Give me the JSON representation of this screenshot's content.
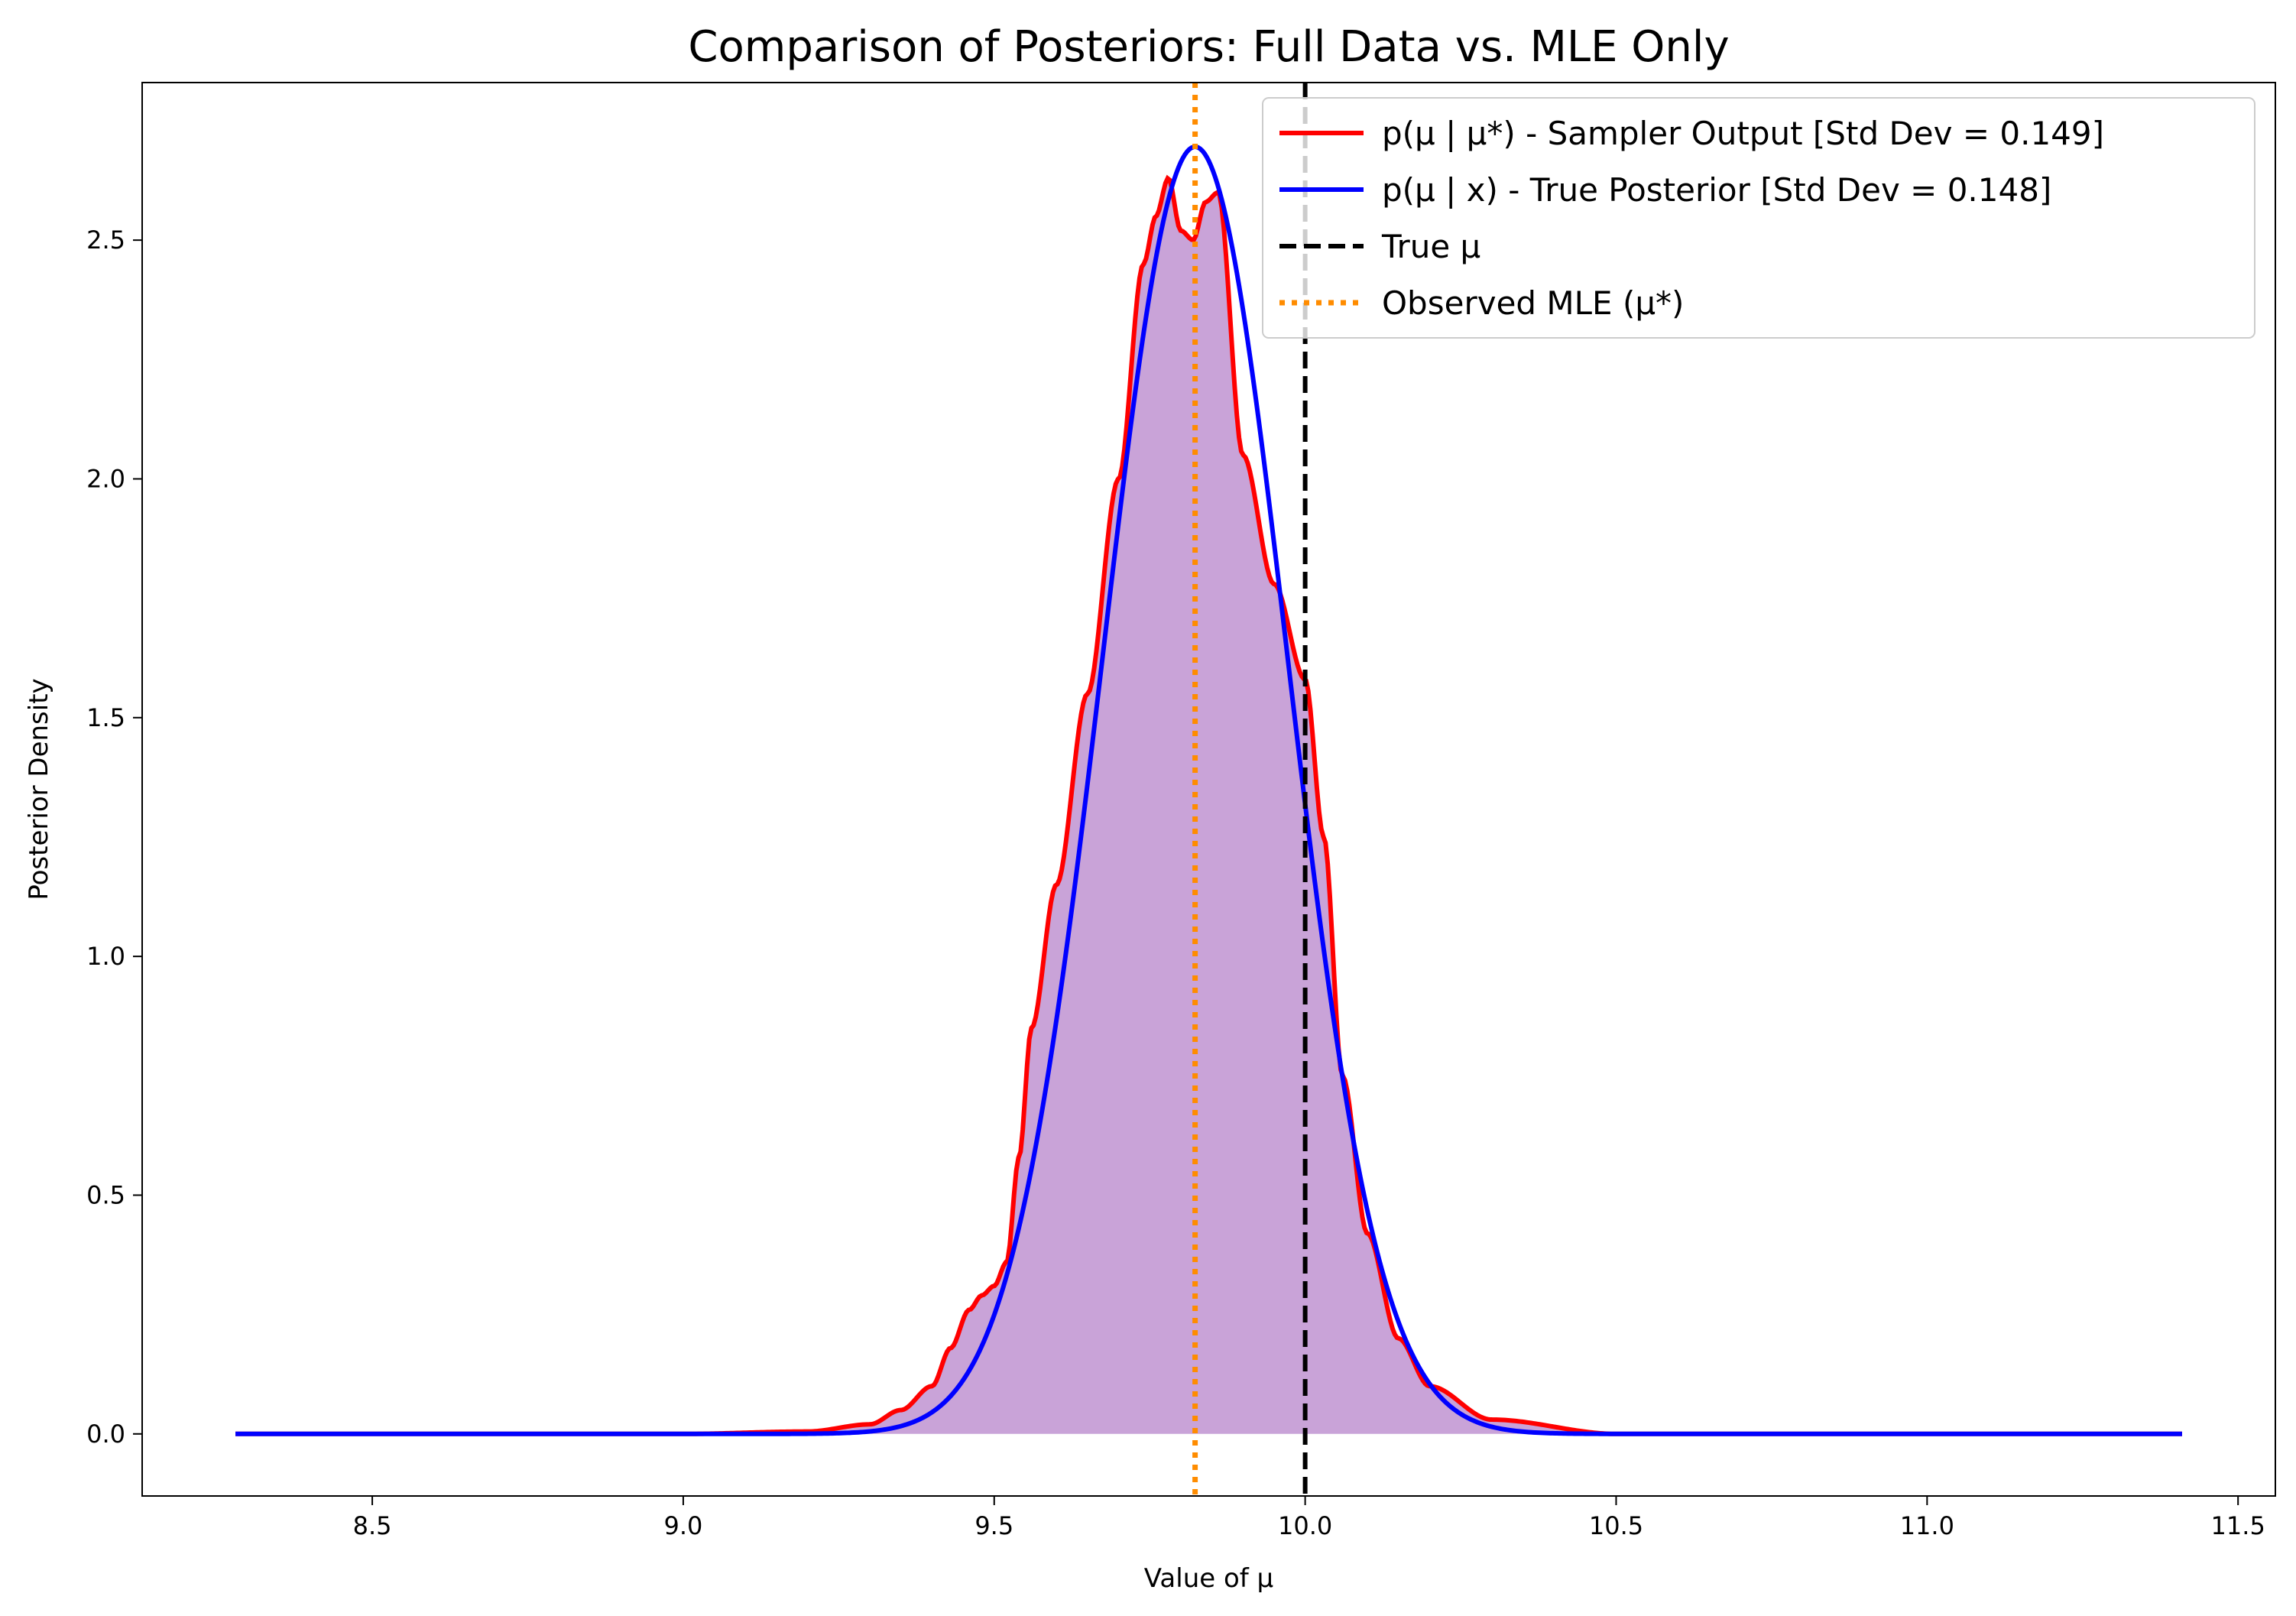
{
  "chart_data": {
    "type": "line",
    "title": "Comparison of Posteriors: Full Data vs. MLE Only",
    "xlabel": "Value of μ",
    "ylabel": "Posterior Density",
    "xlim": [
      8.13,
      11.56
    ],
    "ylim": [
      -0.13,
      2.83
    ],
    "xticks": [
      8.5,
      9.0,
      9.5,
      10.0,
      10.5,
      11.0,
      11.5
    ],
    "xtick_labels": [
      "8.5",
      "9.0",
      "9.5",
      "10.0",
      "10.5",
      "11.0",
      "11.5"
    ],
    "yticks": [
      0.0,
      0.5,
      1.0,
      1.5,
      2.0,
      2.5
    ],
    "ytick_labels": [
      "0.0",
      "0.5",
      "1.0",
      "1.5",
      "2.0",
      "2.5"
    ],
    "grid": false,
    "legend_position": "top-right",
    "fill_color": "#c9a3d8",
    "series": [
      {
        "name": "p(μ | μ*) - Sampler Output [Std Dev = 0.149]",
        "color": "#ff0000",
        "style": "solid",
        "x": [
          8.28,
          9.0,
          9.2,
          9.3,
          9.35,
          9.4,
          9.43,
          9.46,
          9.48,
          9.5,
          9.52,
          9.54,
          9.56,
          9.6,
          9.65,
          9.7,
          9.74,
          9.76,
          9.78,
          9.8,
          9.82,
          9.84,
          9.86,
          9.9,
          9.95,
          10.0,
          10.03,
          10.06,
          10.1,
          10.15,
          10.2,
          10.3,
          10.5,
          11.41
        ],
        "y": [
          0.0,
          0.0,
          0.005,
          0.02,
          0.05,
          0.1,
          0.18,
          0.26,
          0.29,
          0.31,
          0.36,
          0.58,
          0.85,
          1.15,
          1.55,
          2.0,
          2.45,
          2.55,
          2.63,
          2.52,
          2.5,
          2.58,
          2.6,
          2.05,
          1.78,
          1.58,
          1.25,
          0.75,
          0.42,
          0.2,
          0.1,
          0.03,
          0.0,
          0.0
        ]
      },
      {
        "name": "p(μ | x) - True Posterior [Std Dev = 0.148]",
        "color": "#0000ff",
        "style": "solid",
        "mean": 9.823,
        "std": 0.148,
        "x_range": [
          8.28,
          11.41
        ]
      },
      {
        "name": "True μ",
        "color": "#000000",
        "style": "dashed",
        "x": 10.0
      },
      {
        "name": "Observed MLE (μ*)",
        "color": "#ff8c00",
        "style": "dotted",
        "x": 9.823
      }
    ]
  }
}
